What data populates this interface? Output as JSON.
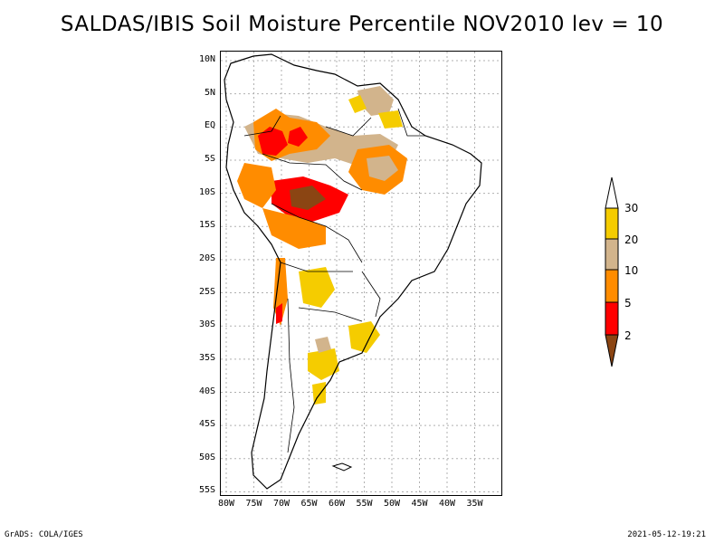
{
  "title": "SALDAS/IBIS Soil Moisture Percentile NOV2010 lev = 10",
  "map": {
    "lat_labels": [
      "10N",
      "5N",
      "EQ",
      "5S",
      "10S",
      "15S",
      "20S",
      "25S",
      "30S",
      "35S",
      "40S",
      "45S",
      "50S",
      "55S"
    ],
    "lon_labels": [
      "80W",
      "75W",
      "70W",
      "65W",
      "60W",
      "55W",
      "50W",
      "45W",
      "40W",
      "35W"
    ],
    "lat_values": [
      10,
      5,
      0,
      -5,
      -10,
      -15,
      -20,
      -25,
      -30,
      -35,
      -40,
      -45,
      -50,
      -55
    ],
    "lon_values": [
      -80,
      -75,
      -70,
      -65,
      -60,
      -55,
      -50,
      -45,
      -40,
      -35
    ]
  },
  "colorbar": {
    "labels": [
      "30",
      "20",
      "10",
      "5",
      "2"
    ],
    "colors": {
      "above_30": "#ffffff",
      "20_30": "#f5cc00",
      "10_20": "#d2b48c",
      "5_10": "#ff8c00",
      "2_5": "#ff0000",
      "below_2": "#8b4513"
    }
  },
  "footer": {
    "left": "GrADS: COLA/IGES",
    "right": "2021-05-12-19:21"
  }
}
